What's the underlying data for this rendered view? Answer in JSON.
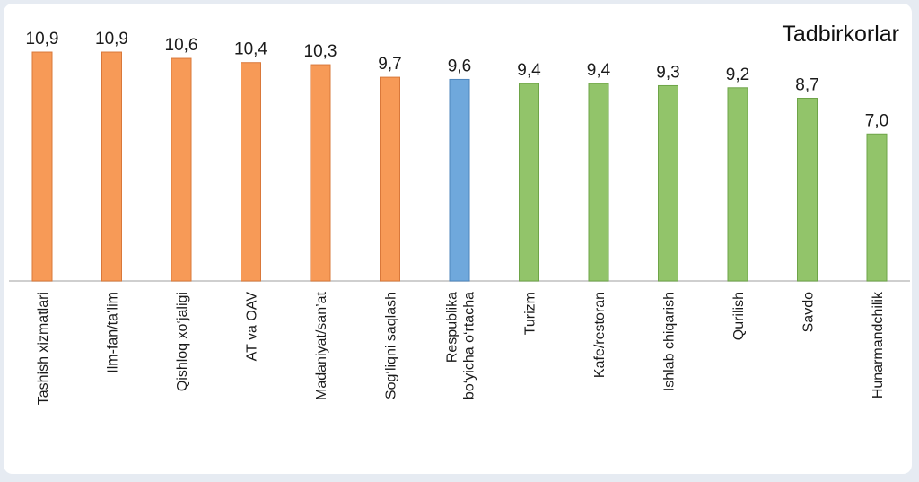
{
  "chart_data": {
    "type": "bar",
    "title": "Tadbirkorlar",
    "xlabel": "",
    "ylabel": "",
    "ylim": [
      0,
      11.5
    ],
    "grid": false,
    "legend": "none",
    "categories": [
      [
        "Tashish xizmatlari"
      ],
      [
        "Ilm-fan/ta’lim"
      ],
      [
        "Qishloq xo‘jaligi"
      ],
      [
        "AT va OAV"
      ],
      [
        "Madaniyat/san’at"
      ],
      [
        "Sog‘liqni saqlash"
      ],
      [
        "Respublika",
        "bo‘yicha o‘rtacha"
      ],
      [
        "Turizm"
      ],
      [
        "Kafe/restoran"
      ],
      [
        "Ishlab chiqarish"
      ],
      [
        "Qurilish"
      ],
      [
        "Savdo"
      ],
      [
        "Hunarmandchilik"
      ]
    ],
    "values": [
      10.9,
      10.9,
      10.6,
      10.4,
      10.3,
      9.7,
      9.6,
      9.4,
      9.4,
      9.3,
      9.2,
      8.7,
      7.0
    ],
    "value_labels": [
      "10,9",
      "10,9",
      "10,6",
      "10,4",
      "10,3",
      "9,7",
      "9,6",
      "9,4",
      "9,4",
      "9,3",
      "9,2",
      "8,7",
      "7,0"
    ],
    "bar_groups": [
      "orange",
      "orange",
      "orange",
      "orange",
      "orange",
      "orange",
      "blue",
      "green",
      "green",
      "green",
      "green",
      "green",
      "green"
    ],
    "colors": {
      "orange": "#f79a57",
      "orange_stroke": "#d9783a",
      "blue": "#6fa8dc",
      "blue_stroke": "#4e86bd",
      "green": "#92c46a",
      "green_stroke": "#6ea448",
      "axis": "#bfbfbf"
    }
  }
}
